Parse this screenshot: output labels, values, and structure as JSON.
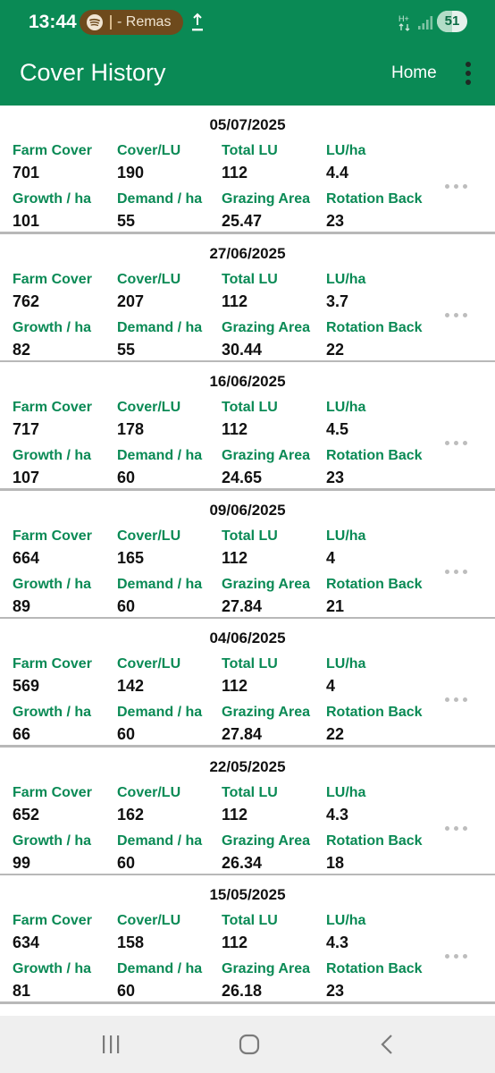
{
  "status_bar": {
    "time": "13:44",
    "media_text": "- Remas",
    "battery_level": "51",
    "battery_fraction": 0.51,
    "media_icon": "spotify-icon",
    "download_icon": "upload-icon"
  },
  "header": {
    "title": "Cover History",
    "home_label": "Home",
    "menu_icon": "more-vert-icon",
    "background_color": "#0a8a55"
  },
  "labels": {
    "farm_cover": "Farm Cover",
    "cover_lu": "Cover/LU",
    "total_lu": "Total LU",
    "lu_ha": "LU/ha",
    "growth_ha": "Growth / ha",
    "demand_ha": "Demand / ha",
    "grazing_area": "Grazing Area",
    "rotation_back": "Rotation Back"
  },
  "records": [
    {
      "date": "05/07/2025",
      "farm_cover": "701",
      "cover_lu": "190",
      "total_lu": "112",
      "lu_ha": "4.4",
      "growth_ha": "101",
      "demand_ha": "55",
      "grazing_area": "25.47",
      "rotation_back": "23"
    },
    {
      "date": "27/06/2025",
      "farm_cover": "762",
      "cover_lu": "207",
      "total_lu": "112",
      "lu_ha": "3.7",
      "growth_ha": "82",
      "demand_ha": "55",
      "grazing_area": "30.44",
      "rotation_back": "22"
    },
    {
      "date": "16/06/2025",
      "farm_cover": "717",
      "cover_lu": "178",
      "total_lu": "112",
      "lu_ha": "4.5",
      "growth_ha": "107",
      "demand_ha": "60",
      "grazing_area": "24.65",
      "rotation_back": "23"
    },
    {
      "date": "09/06/2025",
      "farm_cover": "664",
      "cover_lu": "165",
      "total_lu": "112",
      "lu_ha": "4",
      "growth_ha": "89",
      "demand_ha": "60",
      "grazing_area": "27.84",
      "rotation_back": "21"
    },
    {
      "date": "04/06/2025",
      "farm_cover": "569",
      "cover_lu": "142",
      "total_lu": "112",
      "lu_ha": "4",
      "growth_ha": "66",
      "demand_ha": "60",
      "grazing_area": "27.84",
      "rotation_back": "22"
    },
    {
      "date": "22/05/2025",
      "farm_cover": "652",
      "cover_lu": "162",
      "total_lu": "112",
      "lu_ha": "4.3",
      "growth_ha": "99",
      "demand_ha": "60",
      "grazing_area": "26.34",
      "rotation_back": "18"
    },
    {
      "date": "15/05/2025",
      "farm_cover": "634",
      "cover_lu": "158",
      "total_lu": "112",
      "lu_ha": "4.3",
      "growth_ha": "81",
      "demand_ha": "60",
      "grazing_area": "26.18",
      "rotation_back": "23"
    }
  ],
  "nav_bar": {
    "recents_icon": "recents-icon",
    "home_icon": "home-icon",
    "back_icon": "back-icon"
  }
}
